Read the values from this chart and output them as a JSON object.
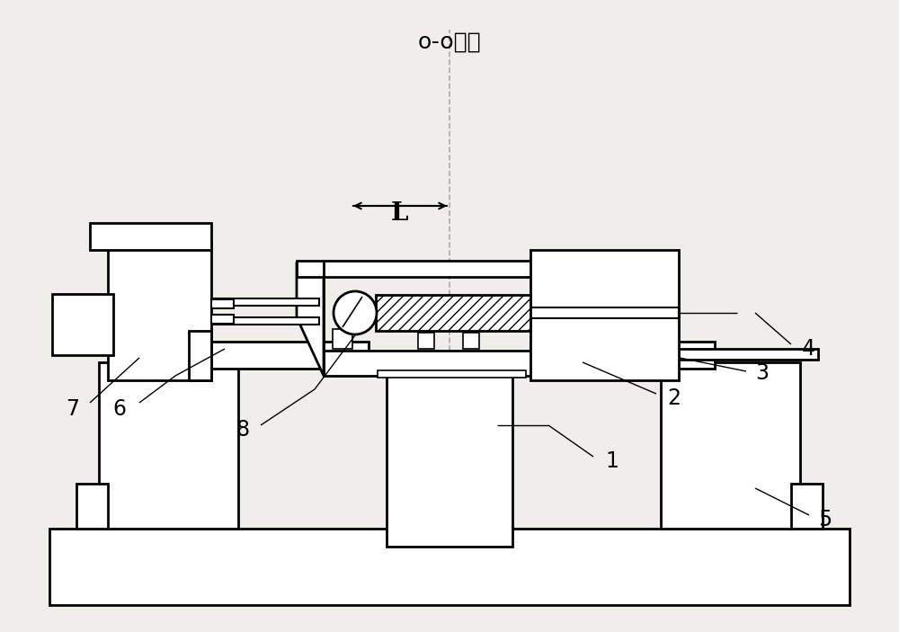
{
  "bg_color": "#f0eeeb",
  "line_color": "#000000",
  "title": "o-o轴线",
  "labels": [
    "1",
    "2",
    "3",
    "4",
    "5",
    "6",
    "7",
    "8",
    "L"
  ],
  "figsize": [
    10.0,
    7.03
  ],
  "dpi": 100
}
